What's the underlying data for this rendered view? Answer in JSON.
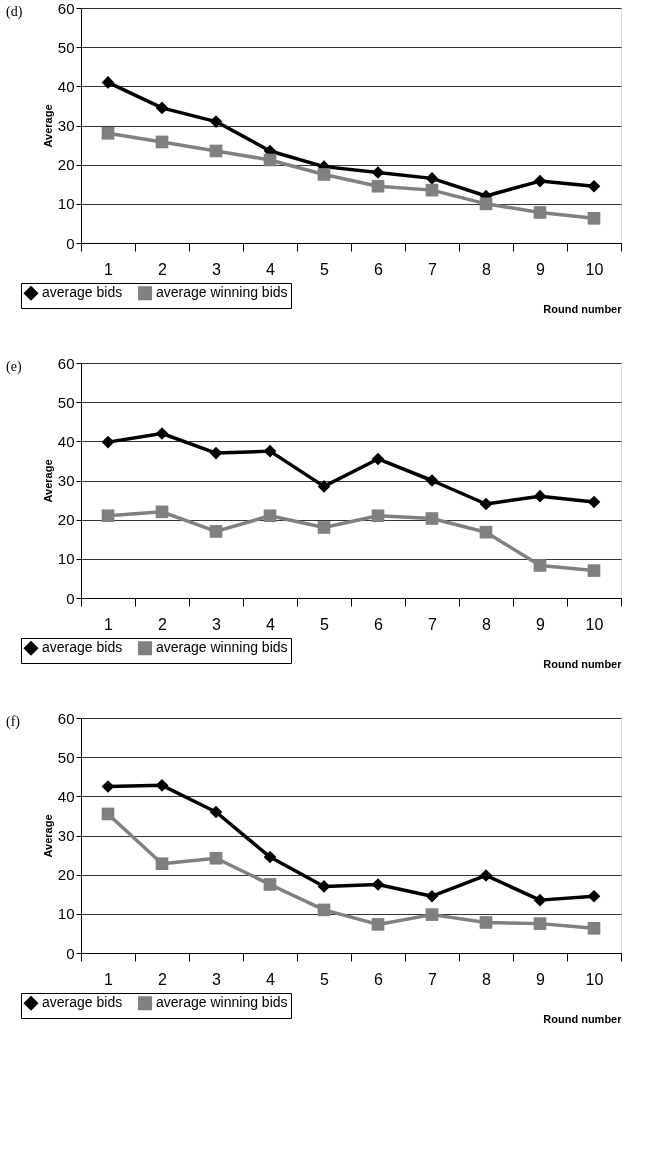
{
  "chart_data": [
    {
      "type": "line",
      "title": "(d)",
      "xlabel": "Round number",
      "ylabel": "Average",
      "categories": [
        "1",
        "2",
        "3",
        "4",
        "5",
        "6",
        "7",
        "8",
        "9",
        "10"
      ],
      "ylim": [
        0,
        60
      ],
      "yticks": [
        0,
        10,
        20,
        30,
        40,
        50,
        60
      ],
      "grid": "y",
      "legend": "bottom left",
      "series": [
        {
          "name": "average bids",
          "color": "#000000",
          "marker": "diamond",
          "values": [
            41,
            34.5,
            31,
            23.5,
            19.5,
            18,
            16.5,
            12,
            15.8,
            14.5
          ]
        },
        {
          "name": "average winning bids",
          "color": "#808080",
          "marker": "square",
          "values": [
            28,
            25.8,
            23.5,
            21.2,
            17.5,
            14.5,
            13.5,
            10,
            7.8,
            6.3
          ]
        }
      ]
    },
    {
      "type": "line",
      "title": "(e)",
      "xlabel": "Round number",
      "ylabel": "Average",
      "categories": [
        "1",
        "2",
        "3",
        "4",
        "5",
        "6",
        "7",
        "8",
        "9",
        "10"
      ],
      "ylim": [
        0,
        60
      ],
      "yticks": [
        0,
        10,
        20,
        30,
        40,
        50,
        60
      ],
      "grid": "y",
      "legend": "bottom left",
      "series": [
        {
          "name": "average bids",
          "color": "#000000",
          "marker": "diamond",
          "values": [
            39.8,
            42,
            37,
            37.5,
            28.5,
            35.5,
            30,
            24,
            26,
            24.5
          ]
        },
        {
          "name": "average winning bids",
          "color": "#808080",
          "marker": "square",
          "values": [
            21,
            22,
            17,
            21,
            18,
            21,
            20.3,
            16.8,
            8.3,
            7
          ]
        }
      ]
    },
    {
      "type": "line",
      "title": "(f)",
      "xlabel": "Round number",
      "ylabel": "Average",
      "categories": [
        "1",
        "2",
        "3",
        "4",
        "5",
        "6",
        "7",
        "8",
        "9",
        "10"
      ],
      "ylim": [
        0,
        60
      ],
      "yticks": [
        0,
        10,
        20,
        30,
        40,
        50,
        60
      ],
      "grid": "y",
      "legend": "bottom left",
      "series": [
        {
          "name": "average bids",
          "color": "#000000",
          "marker": "diamond",
          "values": [
            42.5,
            42.8,
            36,
            24.5,
            17,
            17.5,
            14.5,
            19.8,
            13.5,
            14.5
          ]
        },
        {
          "name": "average winning bids",
          "color": "#808080",
          "marker": "square",
          "values": [
            35.5,
            22.8,
            24.2,
            17.5,
            11,
            7.3,
            9.8,
            7.8,
            7.5,
            6.3
          ]
        }
      ]
    }
  ]
}
